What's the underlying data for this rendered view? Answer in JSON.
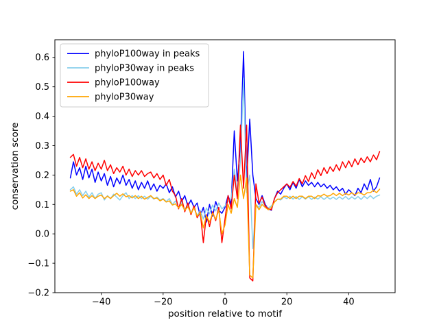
{
  "figure": {
    "background": "#ffffff"
  },
  "chart_data": {
    "type": "line",
    "title": "",
    "xlabel": "position relative to motif",
    "ylabel": "conservation score",
    "xlim": [
      -55,
      55
    ],
    "ylim": [
      -0.2,
      0.66
    ],
    "grid": false,
    "legend_position": "upper-left",
    "xticks": {
      "values": [
        -40,
        -20,
        0,
        20,
        40
      ],
      "labels": [
        "−40",
        "−20",
        "0",
        "20",
        "40"
      ]
    },
    "yticks": {
      "values": [
        -0.2,
        -0.1,
        0.0,
        0.1,
        0.2,
        0.3,
        0.4,
        0.5,
        0.6
      ],
      "labels": [
        "−0.2",
        "−0.1",
        "0.0",
        "0.1",
        "0.2",
        "0.3",
        "0.4",
        "0.5",
        "0.6"
      ]
    },
    "x": [
      -50,
      -49,
      -48,
      -47,
      -46,
      -45,
      -44,
      -43,
      -42,
      -41,
      -40,
      -39,
      -38,
      -37,
      -36,
      -35,
      -34,
      -33,
      -32,
      -31,
      -30,
      -29,
      -28,
      -27,
      -26,
      -25,
      -24,
      -23,
      -22,
      -21,
      -20,
      -19,
      -18,
      -17,
      -16,
      -15,
      -14,
      -13,
      -12,
      -11,
      -10,
      -9,
      -8,
      -7,
      -6,
      -5,
      -4,
      -3,
      -2,
      -1,
      0,
      1,
      2,
      3,
      4,
      5,
      6,
      7,
      8,
      9,
      10,
      11,
      12,
      13,
      14,
      15,
      16,
      17,
      18,
      19,
      20,
      21,
      22,
      23,
      24,
      25,
      26,
      27,
      28,
      29,
      30,
      31,
      32,
      33,
      34,
      35,
      36,
      37,
      38,
      39,
      40,
      41,
      42,
      43,
      44,
      45,
      46,
      47,
      48,
      49,
      50
    ],
    "series": [
      {
        "name": "phyloP100way in peaks",
        "color": "#0000ff",
        "values": [
          0.19,
          0.245,
          0.2,
          0.225,
          0.185,
          0.23,
          0.19,
          0.22,
          0.175,
          0.21,
          0.18,
          0.205,
          0.165,
          0.195,
          0.16,
          0.19,
          0.17,
          0.2,
          0.165,
          0.185,
          0.155,
          0.18,
          0.15,
          0.175,
          0.155,
          0.18,
          0.15,
          0.17,
          0.145,
          0.165,
          0.155,
          0.17,
          0.14,
          0.16,
          0.125,
          0.145,
          0.11,
          0.13,
          0.095,
          0.115,
          0.09,
          0.105,
          0.06,
          0.09,
          0.04,
          0.1,
          0.06,
          0.11,
          0.08,
          0.07,
          0.09,
          0.13,
          0.1,
          0.35,
          0.18,
          0.3,
          0.62,
          0.18,
          0.39,
          0.2,
          0.12,
          0.1,
          0.13,
          0.1,
          0.085,
          0.08,
          0.12,
          0.145,
          0.135,
          0.155,
          0.17,
          0.15,
          0.175,
          0.155,
          0.185,
          0.16,
          0.18,
          0.165,
          0.175,
          0.16,
          0.175,
          0.16,
          0.17,
          0.155,
          0.165,
          0.15,
          0.16,
          0.145,
          0.155,
          0.135,
          0.15,
          0.14,
          0.13,
          0.155,
          0.14,
          0.17,
          0.15,
          0.185,
          0.145,
          0.16,
          0.19
        ]
      },
      {
        "name": "phyloP30way in peaks",
        "color": "#87ceeb",
        "values": [
          0.15,
          0.16,
          0.135,
          0.15,
          0.13,
          0.145,
          0.125,
          0.14,
          0.12,
          0.135,
          0.14,
          0.115,
          0.13,
          0.12,
          0.135,
          0.125,
          0.115,
          0.13,
          0.14,
          0.12,
          0.13,
          0.12,
          0.13,
          0.12,
          0.128,
          0.118,
          0.128,
          0.118,
          0.125,
          0.115,
          0.12,
          0.11,
          0.12,
          0.1,
          0.112,
          0.09,
          0.108,
          0.082,
          0.1,
          0.072,
          0.09,
          0.062,
          0.08,
          0.05,
          0.088,
          0.068,
          0.098,
          0.078,
          0.105,
          0.085,
          0.095,
          0.11,
          0.12,
          0.22,
          0.14,
          0.25,
          0.53,
          0.14,
          0.2,
          -0.05,
          0.1,
          0.09,
          0.11,
          0.095,
          0.088,
          0.095,
          0.108,
          0.118,
          0.115,
          0.125,
          0.12,
          0.128,
          0.118,
          0.127,
          0.117,
          0.126,
          0.118,
          0.126,
          0.117,
          0.125,
          0.118,
          0.126,
          0.117,
          0.125,
          0.118,
          0.125,
          0.117,
          0.126,
          0.118,
          0.127,
          0.117,
          0.126,
          0.118,
          0.127,
          0.117,
          0.128,
          0.12,
          0.13,
          0.12,
          0.128,
          0.132
        ]
      },
      {
        "name": "phyloP100way",
        "color": "#ff0000",
        "values": [
          0.26,
          0.27,
          0.23,
          0.26,
          0.225,
          0.255,
          0.22,
          0.245,
          0.215,
          0.24,
          0.22,
          0.25,
          0.215,
          0.235,
          0.205,
          0.225,
          0.21,
          0.23,
          0.2,
          0.22,
          0.195,
          0.215,
          0.2,
          0.215,
          0.195,
          0.205,
          0.21,
          0.19,
          0.205,
          0.185,
          0.2,
          0.165,
          0.185,
          0.145,
          0.13,
          0.085,
          0.12,
          0.075,
          0.105,
          0.065,
          0.095,
          0.055,
          0.075,
          -0.03,
          0.065,
          0.025,
          0.075,
          0.045,
          0.09,
          -0.03,
          0.05,
          0.13,
          0.085,
          0.2,
          0.12,
          0.37,
          0.155,
          0.37,
          -0.15,
          -0.16,
          0.17,
          0.105,
          0.125,
          0.095,
          0.085,
          0.082,
          0.12,
          0.14,
          0.15,
          0.16,
          0.17,
          0.158,
          0.178,
          0.162,
          0.188,
          0.17,
          0.198,
          0.178,
          0.208,
          0.188,
          0.218,
          0.198,
          0.225,
          0.205,
          0.228,
          0.212,
          0.235,
          0.215,
          0.245,
          0.225,
          0.248,
          0.228,
          0.255,
          0.235,
          0.258,
          0.242,
          0.262,
          0.245,
          0.268,
          0.252,
          0.28
        ]
      },
      {
        "name": "phyloP30way",
        "color": "#ffa500",
        "values": [
          0.145,
          0.15,
          0.128,
          0.14,
          0.122,
          0.133,
          0.12,
          0.13,
          0.12,
          0.128,
          0.132,
          0.12,
          0.128,
          0.12,
          0.13,
          0.138,
          0.128,
          0.136,
          0.126,
          0.13,
          0.122,
          0.13,
          0.12,
          0.128,
          0.118,
          0.124,
          0.13,
          0.12,
          0.122,
          0.112,
          0.118,
          0.108,
          0.112,
          0.098,
          0.102,
          0.088,
          0.1,
          0.08,
          0.092,
          0.07,
          0.088,
          0.06,
          0.072,
          0.02,
          0.062,
          0.04,
          0.07,
          0.05,
          0.08,
          0.0,
          0.03,
          0.1,
          0.07,
          0.12,
          0.09,
          0.2,
          0.12,
          0.19,
          -0.14,
          -0.15,
          0.1,
          0.082,
          0.1,
          0.09,
          0.082,
          0.09,
          0.108,
          0.118,
          0.118,
          0.128,
          0.128,
          0.12,
          0.128,
          0.12,
          0.128,
          0.128,
          0.12,
          0.128,
          0.128,
          0.12,
          0.13,
          0.128,
          0.135,
          0.128,
          0.13,
          0.138,
          0.13,
          0.138,
          0.13,
          0.138,
          0.132,
          0.14,
          0.132,
          0.14,
          0.138,
          0.132,
          0.14,
          0.14,
          0.148,
          0.14,
          0.152
        ]
      }
    ]
  }
}
